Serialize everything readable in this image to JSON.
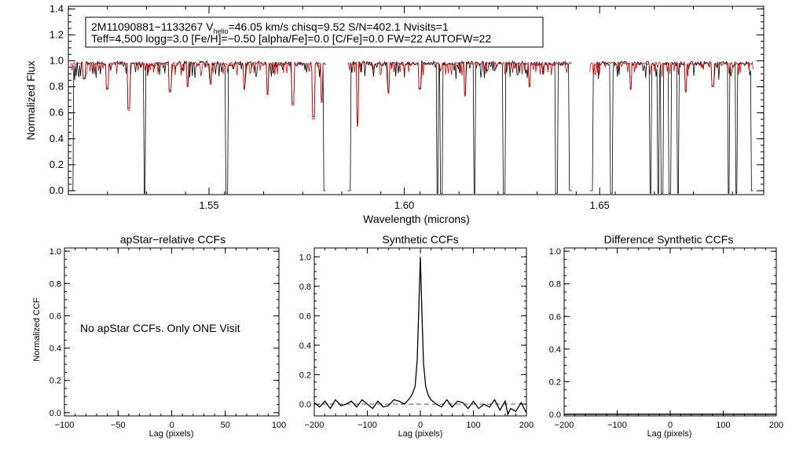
{
  "spectrum": {
    "info_line1": "2M11090881−1133267  V",
    "info_sub": "helio",
    "info_line1b": "=46.05 km/s  chisq=9.52  S/N=402.1  Nvisits=1",
    "info_line2": "Teff=4,500 logg=3.0 [Fe/H]=−0.50 [alpha/Fe]=0.0 [C/Fe]=0.0 FW=22 AUTOFW=22",
    "data_color": "#000000",
    "model_color": "#dd0000"
  },
  "ccf_panels": {
    "left": {
      "title": "apStar−relative CCFs",
      "message": "No apStar CCFs.  Only ONE Visit"
    },
    "middle": {
      "title": "Synthetic CCFs"
    },
    "right": {
      "title": "Difference Synthetic CCFs"
    }
  },
  "chart_data": [
    {
      "type": "line",
      "title": "",
      "xlabel": "Wavelength (microns)",
      "ylabel": "Normalized Flux",
      "xlim": [
        1.514,
        1.692
      ],
      "ylim": [
        -0.03,
        1.42
      ],
      "xticks": [
        1.55,
        1.6,
        1.65
      ],
      "xtick_labels": [
        "1.55",
        "1.60",
        "1.65"
      ],
      "yticks": [
        0.0,
        0.2,
        0.4,
        0.6,
        0.8,
        1.0,
        1.2,
        1.4
      ],
      "ytick_labels": [
        "0.0",
        "0.2",
        "0.4",
        "0.6",
        "0.8",
        "1.0",
        "1.2",
        "1.4"
      ],
      "chips": [
        [
          1.5145,
          1.58
        ],
        [
          1.5855,
          1.643
        ],
        [
          1.6475,
          1.6895
        ]
      ],
      "continuum": 0.98,
      "deep_lines": [
        {
          "x": 1.518,
          "depth": 0.12,
          "model": true
        },
        {
          "x": 1.524,
          "depth": 0.2,
          "model": true
        },
        {
          "x": 1.5295,
          "depth": 0.36,
          "model": true
        },
        {
          "x": 1.5335,
          "depth": 1.0,
          "model": false
        },
        {
          "x": 1.54,
          "depth": 0.22,
          "model": true
        },
        {
          "x": 1.5445,
          "depth": 0.18,
          "model": true
        },
        {
          "x": 1.5505,
          "depth": 0.16,
          "model": true
        },
        {
          "x": 1.5545,
          "depth": 1.0,
          "model": false
        },
        {
          "x": 1.559,
          "depth": 0.2,
          "model": true
        },
        {
          "x": 1.565,
          "depth": 0.24,
          "model": true
        },
        {
          "x": 1.5715,
          "depth": 0.32,
          "model": true
        },
        {
          "x": 1.5768,
          "depth": 0.43,
          "model": true
        },
        {
          "x": 1.5789,
          "depth": 0.3,
          "model": true
        },
        {
          "x": 1.588,
          "depth": 0.48,
          "model": true
        },
        {
          "x": 1.596,
          "depth": 0.23,
          "model": true
        },
        {
          "x": 1.604,
          "depth": 0.2,
          "model": true
        },
        {
          "x": 1.6085,
          "depth": 1.0,
          "model": false
        },
        {
          "x": 1.6095,
          "depth": 1.0,
          "model": false
        },
        {
          "x": 1.6155,
          "depth": 0.25,
          "model": true
        },
        {
          "x": 1.618,
          "depth": 1.0,
          "model": false
        },
        {
          "x": 1.6255,
          "depth": 1.0,
          "model": false
        },
        {
          "x": 1.632,
          "depth": 0.18,
          "model": true
        },
        {
          "x": 1.639,
          "depth": 1.0,
          "model": false
        },
        {
          "x": 1.653,
          "depth": 1.0,
          "model": false
        },
        {
          "x": 1.658,
          "depth": 0.2,
          "model": true
        },
        {
          "x": 1.663,
          "depth": 1.0,
          "model": false
        },
        {
          "x": 1.665,
          "depth": 1.0,
          "model": false
        },
        {
          "x": 1.666,
          "depth": 1.0,
          "model": false
        },
        {
          "x": 1.668,
          "depth": 1.0,
          "model": false
        },
        {
          "x": 1.67,
          "depth": 1.0,
          "model": false
        },
        {
          "x": 1.672,
          "depth": 0.22,
          "model": true
        },
        {
          "x": 1.679,
          "depth": 0.18,
          "model": true
        },
        {
          "x": 1.683,
          "depth": 1.0,
          "model": false
        },
        {
          "x": 1.685,
          "depth": 1.0,
          "model": false
        }
      ],
      "series": [
        {
          "name": "",
          "color": "#000000"
        },
        {
          "name": "",
          "color": "#dd0000"
        }
      ]
    },
    {
      "type": "line",
      "title": "apStar−relative CCFs",
      "xlabel": "Lag (pixels)",
      "ylabel": "Normalized CCF",
      "xlim": [
        -100,
        100
      ],
      "ylim": [
        -0.02,
        1.02
      ],
      "xticks": [
        -100,
        -50,
        0,
        50,
        100
      ],
      "xtick_labels": [
        "−100",
        "−50",
        "0",
        "50",
        "100"
      ],
      "yticks": [
        0.0,
        0.2,
        0.4,
        0.6,
        0.8,
        1.0
      ],
      "ytick_labels": [
        "0.0",
        "0.2",
        "0.4",
        "0.6",
        "0.8",
        "1.0"
      ],
      "series": []
    },
    {
      "type": "line",
      "title": "Synthetic CCFs",
      "xlabel": "Lag (pixels)",
      "ylabel": "",
      "xlim": [
        -200,
        200
      ],
      "ylim": [
        -0.08,
        1.06
      ],
      "xticks": [
        -200,
        -100,
        0,
        100,
        200
      ],
      "xtick_labels": [
        "−200",
        "−100",
        "0",
        "100",
        "200"
      ],
      "yticks": [
        0.0,
        0.2,
        0.4,
        0.6,
        0.8,
        1.0
      ],
      "ytick_labels": [
        "0.0",
        "0.2",
        "0.4",
        "0.6",
        "0.8",
        "1.0"
      ],
      "reference_line": 0.0,
      "series": [
        {
          "name": "",
          "x": [
            -200,
            -190,
            -180,
            -170,
            -160,
            -150,
            -140,
            -130,
            -120,
            -110,
            -100,
            -90,
            -80,
            -70,
            -60,
            -50,
            -40,
            -30,
            -20,
            -15,
            -10,
            -6,
            -3,
            0,
            3,
            6,
            10,
            15,
            20,
            30,
            40,
            50,
            60,
            70,
            80,
            90,
            100,
            110,
            120,
            130,
            140,
            150,
            160,
            165,
            170,
            180,
            190,
            200
          ],
          "y": [
            0.01,
            -0.02,
            0.02,
            -0.03,
            0.03,
            -0.01,
            0.0,
            0.02,
            -0.02,
            0.03,
            0.0,
            -0.03,
            0.02,
            -0.02,
            -0.01,
            0.03,
            0.02,
            0.0,
            0.04,
            0.07,
            0.12,
            0.3,
            0.65,
            1.0,
            0.62,
            0.28,
            0.12,
            0.06,
            0.03,
            0.0,
            -0.02,
            0.03,
            -0.02,
            0.02,
            0.01,
            -0.03,
            0.02,
            -0.03,
            0.0,
            -0.02,
            0.03,
            -0.04,
            0.02,
            -0.07,
            -0.03,
            -0.05,
            0.01,
            -0.06
          ]
        }
      ]
    },
    {
      "type": "line",
      "title": "Difference Synthetic CCFs",
      "xlabel": "Lag (pixels)",
      "ylabel": "",
      "xlim": [
        -200,
        200
      ],
      "ylim": [
        -0.01,
        1.02
      ],
      "xticks": [
        -200,
        -100,
        0,
        100,
        200
      ],
      "xtick_labels": [
        "−200",
        "−100",
        "0",
        "100",
        "200"
      ],
      "yticks": [
        0.0,
        0.2,
        0.4,
        0.6,
        0.8,
        1.0
      ],
      "ytick_labels": [
        "0.0",
        "0.2",
        "0.4",
        "0.6",
        "0.8",
        "1.0"
      ],
      "series": [
        {
          "name": "",
          "x": [
            -200,
            200
          ],
          "y": [
            0.0,
            0.0
          ]
        }
      ]
    }
  ]
}
